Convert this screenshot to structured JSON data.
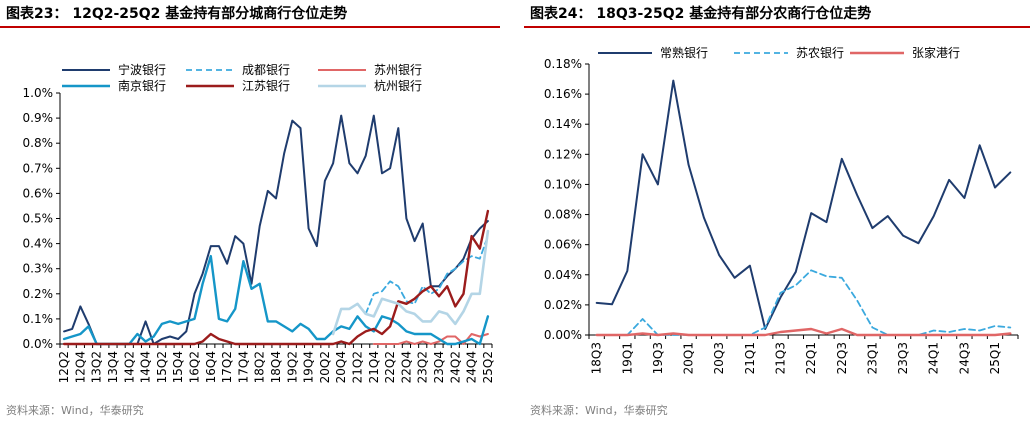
{
  "left": {
    "title": "图表23： 12Q2-25Q2 基金持有部分城商行仓位走势",
    "source": "资料来源：Wind，华泰研究",
    "accent": "#c00000"
  },
  "right": {
    "title": "图表24： 18Q3-25Q2 基金持有部分农商行仓位走势",
    "source": "资料来源：Wind，华泰研究",
    "accent": "#c00000"
  },
  "chart_data": [
    {
      "type": "line",
      "ylim": [
        0,
        1.0
      ],
      "ytick_labels": [
        "0.0%",
        "0.1%",
        "0.2%",
        "0.3%",
        "0.4%",
        "0.5%",
        "0.6%",
        "0.7%",
        "0.8%",
        "0.9%",
        "1.0%"
      ],
      "yticks": [
        0,
        0.1,
        0.2,
        0.3,
        0.4,
        0.5,
        0.6,
        0.7,
        0.8,
        0.9,
        1.0
      ],
      "x": [
        "12Q2",
        "12Q3",
        "12Q4",
        "13Q1",
        "13Q2",
        "13Q3",
        "13Q4",
        "14Q1",
        "14Q2",
        "14Q3",
        "14Q4",
        "15Q1",
        "15Q2",
        "15Q3",
        "15Q4",
        "16Q1",
        "16Q2",
        "16Q3",
        "16Q4",
        "17Q1",
        "17Q2",
        "17Q3",
        "17Q4",
        "18Q1",
        "18Q2",
        "18Q3",
        "18Q4",
        "19Q1",
        "19Q2",
        "19Q3",
        "19Q4",
        "20Q1",
        "20Q2",
        "20Q3",
        "20Q4",
        "21Q1",
        "21Q2",
        "21Q3",
        "21Q4",
        "22Q1",
        "22Q2",
        "22Q3",
        "22Q4",
        "23Q1",
        "23Q2",
        "23Q3",
        "23Q4",
        "24Q1",
        "24Q2",
        "24Q3",
        "24Q4",
        "25Q1",
        "25Q2"
      ],
      "xtick_labels": [
        "12Q2",
        "12Q4",
        "13Q2",
        "13Q4",
        "14Q2",
        "14Q4",
        "15Q2",
        "15Q4",
        "16Q2",
        "16Q4",
        "17Q2",
        "17Q4",
        "18Q2",
        "18Q4",
        "19Q2",
        "19Q4",
        "20Q2",
        "20Q4",
        "21Q2",
        "21Q4",
        "22Q2",
        "22Q4",
        "23Q2",
        "23Q4",
        "24Q2",
        "24Q4",
        "25Q2"
      ],
      "legend": "top",
      "series": [
        {
          "name": "宁波银行",
          "color": "#1f3c6e",
          "dash": "solid",
          "width": 2,
          "values": [
            0.05,
            0.06,
            0.15,
            0.08,
            0.0,
            0.0,
            0.0,
            0.0,
            0.0,
            0.0,
            0.09,
            0.0,
            0.02,
            0.03,
            0.02,
            0.05,
            0.2,
            0.28,
            0.39,
            0.39,
            0.32,
            0.43,
            0.4,
            0.24,
            0.47,
            0.61,
            0.58,
            0.76,
            0.89,
            0.86,
            0.46,
            0.39,
            0.65,
            0.72,
            0.91,
            0.72,
            0.68,
            0.75,
            0.91,
            0.68,
            0.7,
            0.86,
            0.5,
            0.41,
            0.48,
            0.23,
            0.23,
            0.27,
            0.3,
            0.34,
            0.42,
            0.46,
            0.49
          ]
        },
        {
          "name": "成都银行",
          "color": "#3ba9de",
          "dash": "6,4",
          "width": 1.8,
          "values": [
            null,
            null,
            null,
            null,
            null,
            null,
            null,
            null,
            null,
            null,
            null,
            null,
            null,
            null,
            null,
            null,
            null,
            null,
            null,
            null,
            null,
            null,
            null,
            null,
            null,
            null,
            null,
            null,
            null,
            null,
            null,
            null,
            null,
            null,
            null,
            null,
            null,
            0.12,
            0.2,
            0.21,
            0.25,
            0.23,
            0.17,
            0.16,
            0.23,
            0.2,
            0.22,
            0.28,
            0.3,
            0.33,
            0.35,
            0.34,
            0.43
          ]
        },
        {
          "name": "苏州银行",
          "color": "#e06666",
          "dash": "solid",
          "width": 2,
          "values": [
            null,
            null,
            null,
            null,
            null,
            null,
            null,
            null,
            null,
            null,
            null,
            null,
            null,
            null,
            null,
            null,
            null,
            null,
            null,
            null,
            null,
            null,
            null,
            null,
            null,
            null,
            null,
            null,
            null,
            null,
            null,
            null,
            null,
            null,
            null,
            null,
            null,
            null,
            0.0,
            0.0,
            0.0,
            0.0,
            0.01,
            0.0,
            0.01,
            0.0,
            0.01,
            0.03,
            0.03,
            0.0,
            0.04,
            0.03,
            0.04
          ]
        },
        {
          "name": "南京银行",
          "color": "#1596c8",
          "dash": "solid",
          "width": 2.4,
          "values": [
            0.02,
            0.03,
            0.04,
            0.07,
            0.0,
            0.0,
            0.0,
            0.0,
            0.0,
            0.04,
            0.01,
            0.03,
            0.08,
            0.09,
            0.08,
            0.09,
            0.1,
            0.24,
            0.35,
            0.1,
            0.09,
            0.14,
            0.33,
            0.22,
            0.24,
            0.09,
            0.09,
            0.07,
            0.05,
            0.08,
            0.06,
            0.02,
            0.02,
            0.05,
            0.07,
            0.06,
            0.11,
            0.07,
            0.05,
            0.11,
            0.1,
            0.08,
            0.05,
            0.04,
            0.04,
            0.04,
            0.02,
            0.0,
            0.0,
            0.01,
            0.02,
            0.0,
            0.11
          ]
        },
        {
          "name": "江苏银行",
          "color": "#9b1c1c",
          "dash": "solid",
          "width": 2.4,
          "values": [
            0.0,
            0.0,
            0.0,
            0.0,
            0.0,
            0.0,
            0.0,
            0.0,
            0.0,
            0.0,
            0.0,
            0.0,
            0.0,
            0.0,
            0.0,
            0.0,
            0.0,
            0.01,
            0.04,
            0.02,
            0.01,
            0.0,
            0.0,
            0.0,
            0.0,
            0.0,
            0.0,
            0.0,
            0.0,
            0.0,
            0.0,
            0.0,
            0.0,
            0.0,
            0.01,
            0.0,
            0.03,
            0.05,
            0.06,
            0.04,
            0.07,
            0.17,
            0.16,
            0.18,
            0.21,
            0.23,
            0.19,
            0.23,
            0.15,
            0.2,
            0.43,
            0.38,
            0.53
          ]
        },
        {
          "name": "杭州银行",
          "color": "#b4d5e6",
          "dash": "solid",
          "width": 2.6,
          "values": [
            null,
            null,
            null,
            null,
            null,
            null,
            null,
            null,
            null,
            null,
            null,
            null,
            null,
            null,
            null,
            null,
            null,
            null,
            null,
            null,
            null,
            null,
            null,
            null,
            null,
            null,
            null,
            null,
            null,
            null,
            null,
            null,
            null,
            0.04,
            0.14,
            0.14,
            0.16,
            0.12,
            0.11,
            0.18,
            0.17,
            0.16,
            0.13,
            0.12,
            0.09,
            0.09,
            0.13,
            0.12,
            0.08,
            0.13,
            0.2,
            0.2,
            0.45
          ]
        }
      ]
    },
    {
      "type": "line",
      "ylim": [
        0,
        0.18
      ],
      "ytick_labels": [
        "0.00%",
        "0.02%",
        "0.04%",
        "0.06%",
        "0.08%",
        "0.10%",
        "0.12%",
        "0.14%",
        "0.16%",
        "0.18%"
      ],
      "yticks": [
        0,
        0.02,
        0.04,
        0.06,
        0.08,
        0.1,
        0.12,
        0.14,
        0.16,
        0.18
      ],
      "x": [
        "18Q3",
        "18Q4",
        "19Q1",
        "19Q2",
        "19Q3",
        "19Q4",
        "20Q1",
        "20Q2",
        "20Q3",
        "20Q4",
        "21Q1",
        "21Q2",
        "21Q3",
        "21Q4",
        "22Q1",
        "22Q2",
        "22Q3",
        "22Q4",
        "23Q1",
        "23Q2",
        "23Q3",
        "23Q4",
        "24Q1",
        "24Q2",
        "24Q3",
        "24Q4",
        "25Q1",
        "25Q2"
      ],
      "xtick_labels": [
        "18Q3",
        "19Q1",
        "19Q3",
        "20Q1",
        "20Q3",
        "21Q1",
        "21Q3",
        "22Q1",
        "22Q3",
        "23Q1",
        "23Q3",
        "24Q1",
        "24Q3",
        "25Q1"
      ],
      "legend": "top",
      "series": [
        {
          "name": "常熟银行",
          "color": "#1f3c6e",
          "dash": "solid",
          "width": 2,
          "values": [
            0.0213,
            0.0204,
            0.0425,
            0.12,
            0.1,
            0.169,
            0.113,
            0.078,
            0.053,
            0.038,
            0.046,
            0.004,
            0.025,
            0.042,
            0.081,
            0.075,
            0.117,
            0.093,
            0.071,
            0.079,
            0.066,
            0.061,
            0.079,
            0.103,
            0.091,
            0.126,
            0.098,
            0.108
          ]
        },
        {
          "name": "苏农银行",
          "color": "#3ba9de",
          "dash": "6,4",
          "width": 1.8,
          "values": [
            0.0,
            0.0,
            0.0,
            0.0106,
            0.0,
            0.0,
            0.0,
            0.0,
            0.0,
            0.0,
            0.0,
            0.005,
            0.028,
            0.033,
            0.043,
            0.039,
            0.038,
            0.023,
            0.005,
            0.0,
            0.0,
            0.0,
            0.003,
            0.002,
            0.004,
            0.003,
            0.006,
            0.005
          ]
        },
        {
          "name": "张家港行",
          "color": "#e06666",
          "dash": "solid",
          "width": 2.4,
          "values": [
            0.0,
            0.0,
            0.0,
            0.001,
            0.0,
            0.001,
            0.0,
            0.0,
            0.0,
            0.0,
            0.0,
            0.0,
            0.002,
            0.003,
            0.004,
            0.001,
            0.004,
            0.0,
            0.0,
            0.0,
            0.0,
            0.0,
            0.0,
            0.0,
            0.0,
            0.0,
            0.0,
            0.001
          ]
        }
      ]
    }
  ]
}
